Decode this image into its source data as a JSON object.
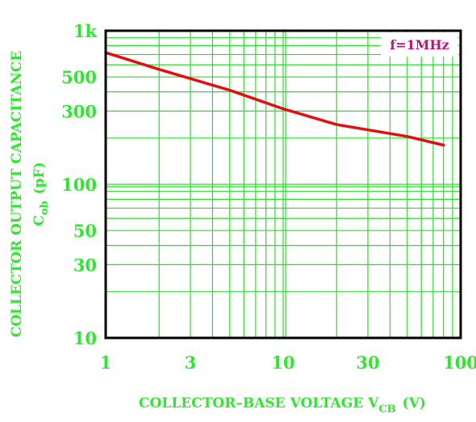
{
  "chart_data": {
    "type": "line",
    "title": "",
    "xscale": "log",
    "yscale": "log",
    "xlim": [
      1,
      100
    ],
    "ylim": [
      10,
      1000
    ],
    "grid": true,
    "xticks": [
      {
        "value": 1,
        "label": "1"
      },
      {
        "value": 3,
        "label": "3"
      },
      {
        "value": 10,
        "label": "10"
      },
      {
        "value": 30,
        "label": "30"
      },
      {
        "value": 100,
        "label": "100"
      }
    ],
    "yticks": [
      {
        "value": 10,
        "label": "10"
      },
      {
        "value": 30,
        "label": "30"
      },
      {
        "value": 50,
        "label": "50"
      },
      {
        "value": 100,
        "label": "100"
      },
      {
        "value": 300,
        "label": "300"
      },
      {
        "value": 500,
        "label": "500"
      },
      {
        "value": 1000,
        "label": "1k"
      }
    ],
    "xlabel": {
      "main": "COLLECTOR–BASE VOLTAGE V",
      "sub": "CB",
      "unit": "(V)"
    },
    "ylabel": {
      "line1": "COLLECTOR OUTPUT CAPACITANCE",
      "line2_main": "C",
      "line2_sub": "ob",
      "line2_unit": "(pF)"
    },
    "annotation": "f=1MHz",
    "series": [
      {
        "x": [
          1,
          2,
          5,
          10,
          20,
          50,
          80
        ],
        "y": [
          720,
          560,
          410,
          310,
          245,
          205,
          180
        ]
      }
    ],
    "colors": {
      "grid": "#22e022",
      "frame": "#000000",
      "line": "#e01010",
      "text": "#2ee82e",
      "annotation": "#c0107a"
    }
  }
}
